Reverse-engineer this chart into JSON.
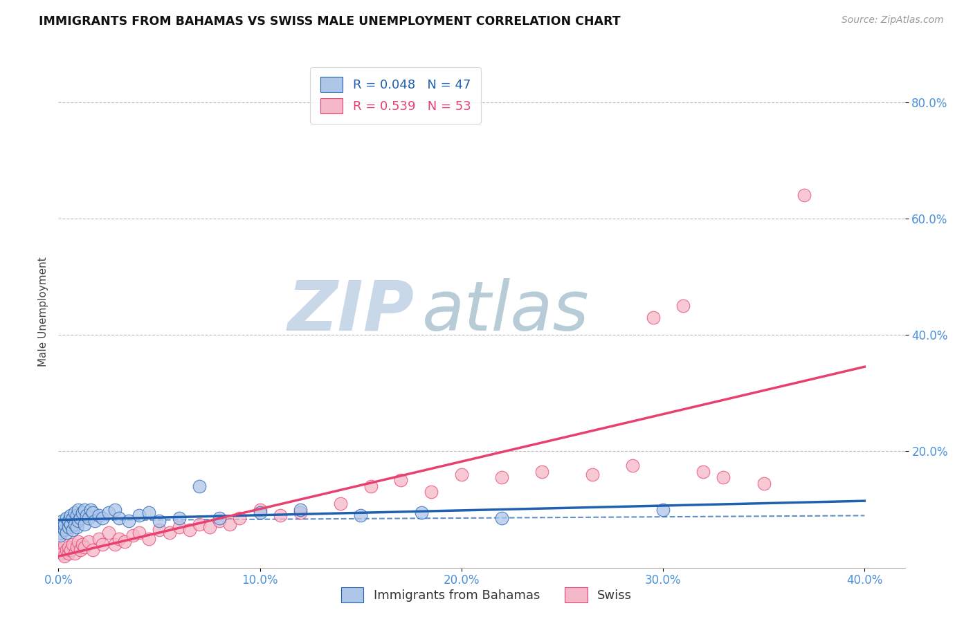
{
  "title": "IMMIGRANTS FROM BAHAMAS VS SWISS MALE UNEMPLOYMENT CORRELATION CHART",
  "source": "Source: ZipAtlas.com",
  "ylabel": "Male Unemployment",
  "xlim": [
    0.0,
    0.42
  ],
  "ylim": [
    0.0,
    0.88
  ],
  "xtick_labels": [
    "0.0%",
    "10.0%",
    "20.0%",
    "30.0%",
    "40.0%"
  ],
  "xtick_values": [
    0.0,
    0.1,
    0.2,
    0.3,
    0.4
  ],
  "ytick_labels": [
    "20.0%",
    "40.0%",
    "60.0%",
    "80.0%"
  ],
  "ytick_values": [
    0.2,
    0.4,
    0.6,
    0.8
  ],
  "legend_blue_r": "0.048",
  "legend_blue_n": "47",
  "legend_pink_r": "0.539",
  "legend_pink_n": "53",
  "blue_color": "#aec6e8",
  "blue_line_color": "#2060b0",
  "pink_color": "#f5b8c8",
  "pink_line_color": "#e84070",
  "blue_scatter_x": [
    0.001,
    0.001,
    0.002,
    0.002,
    0.003,
    0.003,
    0.004,
    0.004,
    0.005,
    0.005,
    0.006,
    0.006,
    0.007,
    0.007,
    0.008,
    0.008,
    0.009,
    0.009,
    0.01,
    0.01,
    0.011,
    0.012,
    0.013,
    0.013,
    0.014,
    0.015,
    0.016,
    0.017,
    0.018,
    0.02,
    0.022,
    0.025,
    0.028,
    0.03,
    0.035,
    0.04,
    0.045,
    0.05,
    0.06,
    0.07,
    0.08,
    0.1,
    0.12,
    0.15,
    0.18,
    0.22,
    0.3
  ],
  "blue_scatter_y": [
    0.06,
    0.055,
    0.08,
    0.07,
    0.065,
    0.075,
    0.06,
    0.085,
    0.07,
    0.08,
    0.075,
    0.09,
    0.065,
    0.085,
    0.075,
    0.095,
    0.07,
    0.09,
    0.08,
    0.1,
    0.085,
    0.095,
    0.1,
    0.075,
    0.09,
    0.085,
    0.1,
    0.095,
    0.08,
    0.09,
    0.085,
    0.095,
    0.1,
    0.085,
    0.08,
    0.09,
    0.095,
    0.08,
    0.085,
    0.14,
    0.085,
    0.095,
    0.1,
    0.09,
    0.095,
    0.085,
    0.1
  ],
  "pink_scatter_x": [
    0.001,
    0.002,
    0.003,
    0.003,
    0.004,
    0.005,
    0.005,
    0.006,
    0.007,
    0.008,
    0.009,
    0.01,
    0.011,
    0.012,
    0.013,
    0.015,
    0.017,
    0.02,
    0.022,
    0.025,
    0.028,
    0.03,
    0.033,
    0.037,
    0.04,
    0.045,
    0.05,
    0.055,
    0.06,
    0.065,
    0.07,
    0.075,
    0.08,
    0.085,
    0.09,
    0.1,
    0.11,
    0.12,
    0.14,
    0.155,
    0.17,
    0.185,
    0.2,
    0.22,
    0.24,
    0.265,
    0.285,
    0.295,
    0.31,
    0.32,
    0.33,
    0.35,
    0.37
  ],
  "pink_scatter_y": [
    0.03,
    0.025,
    0.04,
    0.02,
    0.03,
    0.025,
    0.035,
    0.03,
    0.04,
    0.025,
    0.035,
    0.045,
    0.03,
    0.04,
    0.035,
    0.045,
    0.03,
    0.05,
    0.04,
    0.06,
    0.04,
    0.05,
    0.045,
    0.055,
    0.06,
    0.05,
    0.065,
    0.06,
    0.07,
    0.065,
    0.075,
    0.07,
    0.08,
    0.075,
    0.085,
    0.1,
    0.09,
    0.095,
    0.11,
    0.14,
    0.15,
    0.13,
    0.16,
    0.155,
    0.165,
    0.16,
    0.175,
    0.43,
    0.45,
    0.165,
    0.155,
    0.145,
    0.64
  ],
  "background_color": "#ffffff",
  "watermark_zip_color": "#c8d8e8",
  "watermark_atlas_color": "#b8ccd8",
  "grid_color": "#bbbbbb",
  "grid_linestyle": "--"
}
